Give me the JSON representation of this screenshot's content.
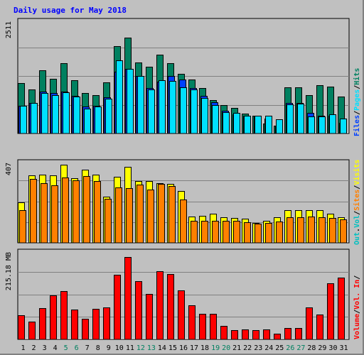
{
  "title": "Daily usage for May 2018",
  "colors": {
    "hits": "#008060",
    "files": "#0040ff",
    "pages": "#00e0ff",
    "visits": "#ffff00",
    "sites": "#ff8000",
    "volume": "#ff0000",
    "vol_in": "#ff0000",
    "vol_out": "#00c0c0",
    "background": "#c0c0c0",
    "gridline": "#808080",
    "label_text": "#000000"
  },
  "chart_data": [
    {
      "type": "bar",
      "panel": "top",
      "y_max_label": "2511",
      "ylim": [
        0,
        2511
      ],
      "grid": true,
      "categories": [
        "1",
        "2",
        "3",
        "4",
        "5",
        "6",
        "7",
        "8",
        "9",
        "10",
        "11",
        "12",
        "13",
        "14",
        "15",
        "16",
        "17",
        "18",
        "19",
        "20",
        "21",
        "22",
        "23",
        "24",
        "25",
        "26",
        "27",
        "28",
        "29",
        "30",
        "31"
      ],
      "weekend_days": [
        "5",
        "6",
        "12",
        "13",
        "19",
        "20",
        "26",
        "27"
      ],
      "legend": [
        "Hits",
        "Files",
        "Pages"
      ],
      "series": [
        {
          "name": "Hits",
          "color_key": "hits",
          "values": [
            1145,
            1000,
            1430,
            1240,
            1600,
            1200,
            910,
            870,
            1160,
            1980,
            2180,
            1615,
            1520,
            1780,
            1600,
            1360,
            1220,
            1030,
            750,
            650,
            580,
            450,
            395,
            220,
            180,
            1050,
            1050,
            870,
            1090,
            1065,
            840
          ]
        },
        {
          "name": "Files",
          "color_key": "files",
          "values": [
            635,
            690,
            950,
            925,
            950,
            850,
            610,
            630,
            820,
            1400,
            1460,
            1310,
            1035,
            1170,
            1300,
            1230,
            1035,
            860,
            710,
            510,
            440,
            400,
            400,
            335,
            180,
            690,
            690,
            460,
            400,
            400,
            240
          ]
        },
        {
          "name": "Pages",
          "color_key": "pages",
          "values": [
            630,
            690,
            920,
            875,
            940,
            840,
            560,
            610,
            790,
            1650,
            1460,
            1310,
            990,
            1200,
            1190,
            1050,
            1000,
            800,
            650,
            480,
            470,
            400,
            400,
            400,
            320,
            660,
            680,
            380,
            390,
            430,
            330
          ]
        }
      ]
    },
    {
      "type": "bar",
      "panel": "middle",
      "y_max_label": "407",
      "ylim": [
        0,
        407
      ],
      "grid": true,
      "legend": [
        "Visits",
        "Sites"
      ],
      "series": [
        {
          "name": "Visits",
          "color_key": "visits",
          "values": [
            209,
            348,
            351,
            350,
            404,
            335,
            378,
            353,
            239,
            342,
            392,
            320,
            318,
            308,
            306,
            267,
            137,
            140,
            149,
            132,
            129,
            124,
            101,
            112,
            131,
            169,
            167,
            169,
            168,
            150,
            133
          ]
        },
        {
          "name": "Sites",
          "color_key": "sites",
          "values": [
            170,
            331,
            307,
            297,
            338,
            321,
            346,
            318,
            228,
            286,
            284,
            299,
            276,
            305,
            292,
            223,
            113,
            113,
            113,
            114,
            113,
            106,
            99,
            103,
            111,
            131,
            132,
            134,
            132,
            130,
            122
          ]
        }
      ]
    },
    {
      "type": "bar",
      "panel": "bottom",
      "y_max_label": "215.18 MB",
      "ylim": [
        0,
        215.18
      ],
      "grid": true,
      "legend": [
        "Volume",
        "Vol. In",
        "Vol. Out"
      ],
      "series": [
        {
          "name": "Volume",
          "color_key": "volume",
          "values": [
            61,
            44,
            78,
            110,
            121,
            74,
            52,
            77,
            80,
            162,
            207,
            146,
            114,
            170,
            163,
            122,
            86,
            64,
            64,
            33,
            23,
            25,
            23,
            25,
            14,
            28,
            28,
            80,
            63,
            141,
            155
          ]
        }
      ]
    }
  ],
  "right_legends": {
    "top": [
      {
        "text": "Files",
        "color_key": "files"
      },
      {
        "text": "/",
        "color_key": "label_text"
      },
      {
        "text": "Pages",
        "color_key": "pages"
      },
      {
        "text": "/",
        "color_key": "label_text"
      },
      {
        "text": "Hits",
        "color_key": "hits"
      }
    ],
    "middle": [
      {
        "text": "Out",
        "color_key": "vol_out"
      },
      {
        "text": ".",
        "color_key": "label_text"
      },
      {
        "text": "Vol",
        "color_key": "vol_out"
      },
      {
        "text": "/",
        "color_key": "label_text"
      },
      {
        "text": "Sites",
        "color_key": "sites"
      },
      {
        "text": "/",
        "color_key": "label_text"
      },
      {
        "text": "Visits",
        "color_key": "visits"
      }
    ],
    "bottom": [
      {
        "text": "Volume",
        "color_key": "volume"
      },
      {
        "text": "/",
        "color_key": "label_text"
      },
      {
        "text": "Vol. In",
        "color_key": "vol_in"
      },
      {
        "text": "/",
        "color_key": "label_text"
      }
    ]
  }
}
